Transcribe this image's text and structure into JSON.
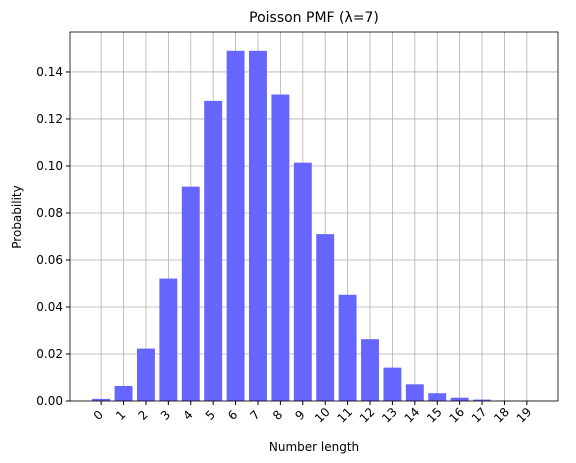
{
  "chart_data": {
    "type": "bar",
    "title": "Poisson PMF (λ=7)",
    "x_label": "Number length",
    "y_label": "Probability",
    "categories": [
      "0",
      "1",
      "2",
      "3",
      "4",
      "5",
      "6",
      "7",
      "8",
      "9",
      "10",
      "11",
      "12",
      "13",
      "14",
      "15",
      "16",
      "17",
      "18",
      "19"
    ],
    "values": [
      0.0009,
      0.0064,
      0.0223,
      0.0521,
      0.0912,
      0.1277,
      0.149,
      0.149,
      0.1304,
      0.1014,
      0.071,
      0.0452,
      0.0263,
      0.0142,
      0.0071,
      0.0033,
      0.0014,
      0.0006,
      0.0002,
      0.0001
    ],
    "color": "#6666ff",
    "ylim": [
      0,
      0.157
    ],
    "yticks": [
      {
        "value": 0,
        "label": "0.00"
      },
      {
        "value": 0.02,
        "label": "0.02"
      },
      {
        "value": 0.04,
        "label": "0.04"
      },
      {
        "value": 0.06,
        "label": "0.06"
      },
      {
        "value": 0.08,
        "label": "0.08"
      },
      {
        "value": 0.1,
        "label": "0.10"
      },
      {
        "value": 0.12,
        "label": "0.12"
      },
      {
        "value": 0.14,
        "label": "0.14"
      }
    ],
    "grid": true
  }
}
